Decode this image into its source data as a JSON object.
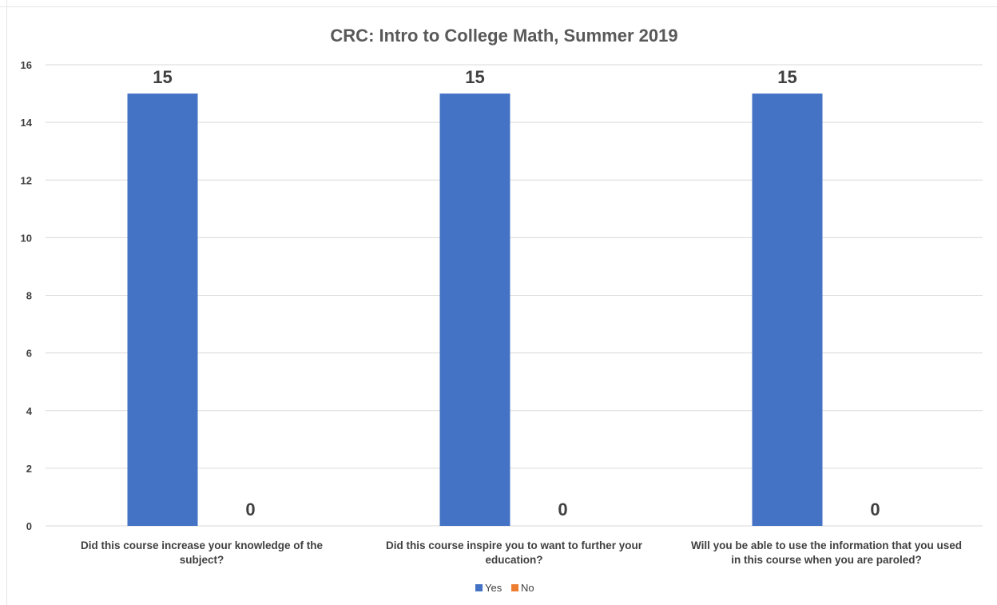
{
  "chart_data": {
    "type": "bar",
    "title": "CRC: Intro to College Math, Summer 2019",
    "categories": [
      [
        "Did this course increase your knowledge of the",
        "subject?"
      ],
      [
        "Did this course inspire you to want to further your",
        "education?"
      ],
      [
        "Will you be able to use the information that you used",
        "in this course when you are paroled?"
      ]
    ],
    "series": [
      {
        "name": "Yes",
        "color": "#4472C4",
        "values": [
          15,
          15,
          15
        ]
      },
      {
        "name": "No",
        "color": "#ED7D31",
        "values": [
          0,
          0,
          0
        ]
      }
    ],
    "ylim": [
      0,
      16
    ],
    "yticks": [
      0,
      2,
      4,
      6,
      8,
      10,
      12,
      14,
      16
    ],
    "grid": true,
    "legend_position": "bottom",
    "data_labels": true
  }
}
